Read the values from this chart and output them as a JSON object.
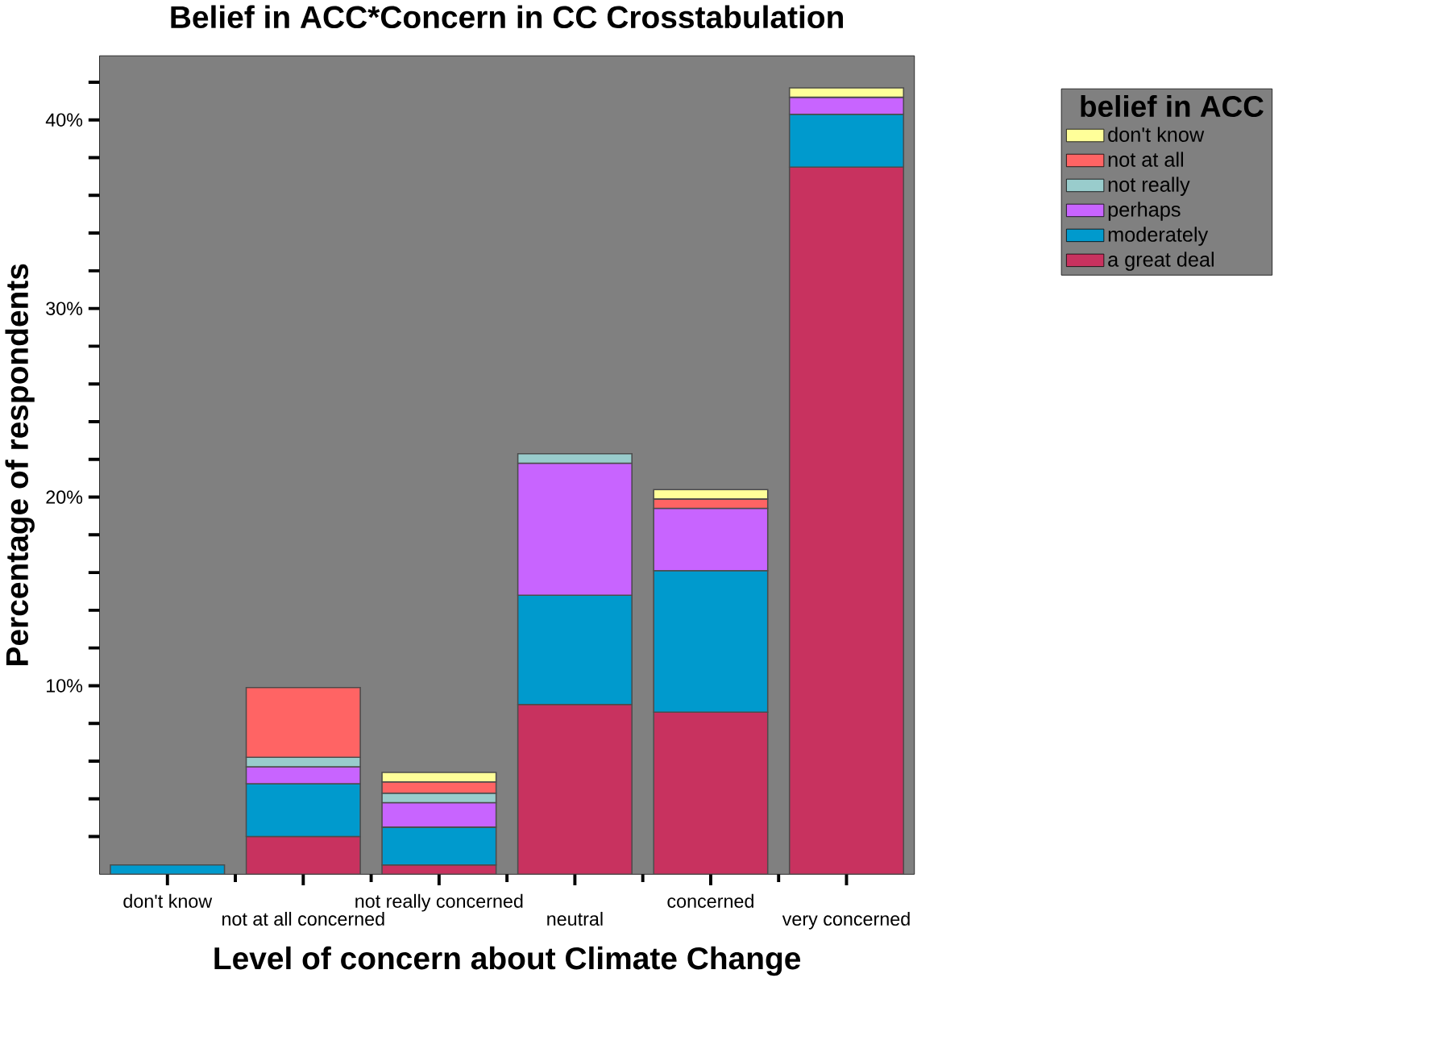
{
  "chart_data": {
    "type": "bar",
    "stacked": true,
    "title": "Belief in ACC*Concern in CC Crosstabulation",
    "xlabel": "Level of concern about Climate Change",
    "ylabel": "Percentage of respondents",
    "legend_title": "belief in ACC",
    "legend": "top right",
    "categories": [
      "don't know",
      "not at all concerned",
      "not really concerned",
      "neutral",
      "concerned",
      "very concerned"
    ],
    "ylim": [
      0,
      43.4
    ],
    "yticks": [
      {
        "value": 2,
        "label": null
      },
      {
        "value": 4,
        "label": null
      },
      {
        "value": 6,
        "label": null
      },
      {
        "value": 8,
        "label": null
      },
      {
        "value": 10,
        "label": "10%"
      },
      {
        "value": 12,
        "label": null
      },
      {
        "value": 14,
        "label": null
      },
      {
        "value": 16,
        "label": null
      },
      {
        "value": 18,
        "label": null
      },
      {
        "value": 20,
        "label": "20%"
      },
      {
        "value": 22,
        "label": null
      },
      {
        "value": 24,
        "label": null
      },
      {
        "value": 26,
        "label": null
      },
      {
        "value": 28,
        "label": null
      },
      {
        "value": 30,
        "label": "30%"
      },
      {
        "value": 32,
        "label": null
      },
      {
        "value": 34,
        "label": null
      },
      {
        "value": 36,
        "label": null
      },
      {
        "value": 38,
        "label": null
      },
      {
        "value": 40,
        "label": "40%"
      },
      {
        "value": 42,
        "label": null
      }
    ],
    "series": [
      {
        "name": "a great deal",
        "color": "#c8325f",
        "values": [
          null,
          2.0,
          0.5,
          9.0,
          8.6,
          37.5
        ]
      },
      {
        "name": "moderately",
        "color": "#009acd",
        "values": [
          0.5,
          2.8,
          2.0,
          5.8,
          7.5,
          2.8
        ]
      },
      {
        "name": "perhaps",
        "color": "#c864ff",
        "values": [
          null,
          0.9,
          1.3,
          7.0,
          3.3,
          0.9
        ]
      },
      {
        "name": "not really",
        "color": "#99cccc",
        "values": [
          null,
          0.5,
          0.5,
          0.5,
          null,
          null
        ]
      },
      {
        "name": "not at all",
        "color": "#ff6464",
        "values": [
          null,
          3.7,
          0.6,
          null,
          0.5,
          null
        ]
      },
      {
        "name": "don't know",
        "color": "#ffff99",
        "values": [
          null,
          null,
          0.5,
          null,
          0.5,
          0.5
        ]
      }
    ]
  }
}
